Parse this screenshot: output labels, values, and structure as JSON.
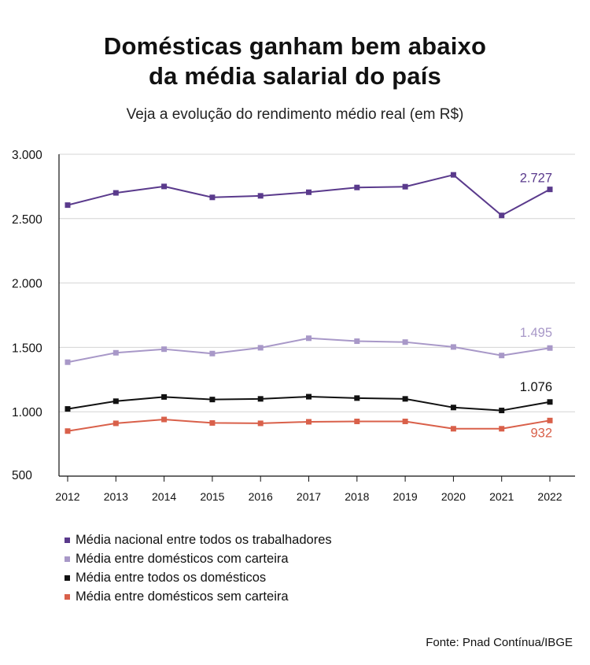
{
  "title_line1": "Domésticas ganham bem abaixo",
  "title_line2": "da média salarial do país",
  "subtitle": "Veja a evolução do rendimento médio real (em R$)",
  "source": "Fonte: Pnad Contínua/IBGE",
  "chart_data": {
    "type": "line",
    "title": "Domésticas ganham bem abaixo da média salarial do país",
    "subtitle": "Veja a evolução do rendimento médio real (em R$)",
    "xlabel": "",
    "ylabel": "",
    "x": [
      "2012",
      "2013",
      "2014",
      "2015",
      "2016",
      "2017",
      "2018",
      "2019",
      "2020",
      "2021",
      "2022"
    ],
    "ylim": [
      500,
      3000
    ],
    "yticks": [
      500,
      1000,
      1500,
      2000,
      2500,
      3000
    ],
    "ytick_labels": [
      "500",
      "1.000",
      "1.500",
      "2.000",
      "2.500",
      "3.000"
    ],
    "grid": "horizontal",
    "legend_position": "bottom-left",
    "series": [
      {
        "name": "Média nacional entre todos os trabalhadores",
        "color": "#5a3a8c",
        "values": [
          2605,
          2700,
          2750,
          2665,
          2677,
          2705,
          2742,
          2748,
          2840,
          2525,
          2727
        ],
        "end_label": "2.727"
      },
      {
        "name": "Média entre domésticos com carteira",
        "color": "#a898c8",
        "values": [
          1385,
          1458,
          1486,
          1452,
          1497,
          1571,
          1548,
          1541,
          1503,
          1437,
          1495
        ],
        "end_label": "1.495"
      },
      {
        "name": "Média entre todos os domésticos",
        "color": "#111111",
        "values": [
          1022,
          1082,
          1115,
          1095,
          1100,
          1117,
          1106,
          1100,
          1033,
          1010,
          1076
        ],
        "end_label": "1.076"
      },
      {
        "name": "Média entre domésticos sem  carteira",
        "color": "#d9604a",
        "values": [
          850,
          910,
          940,
          913,
          910,
          922,
          925,
          925,
          868,
          868,
          932
        ],
        "end_label": "932"
      }
    ]
  }
}
